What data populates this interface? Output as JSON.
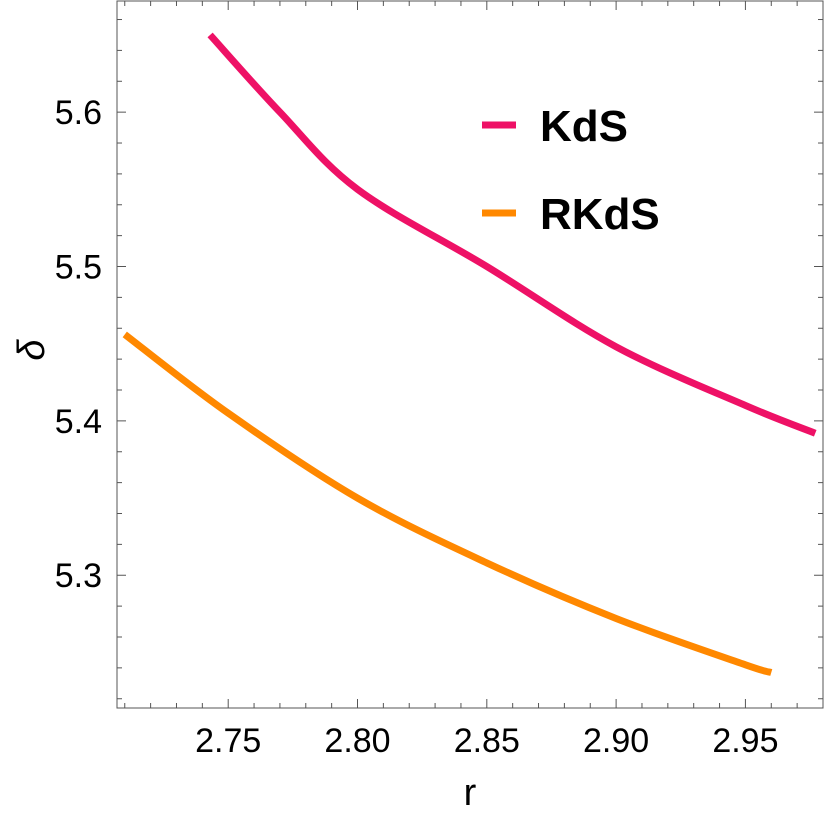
{
  "chart_data": {
    "type": "line",
    "xlabel": "r",
    "ylabel": "δ",
    "xlim": [
      2.707,
      2.98
    ],
    "ylim": [
      5.214,
      5.672
    ],
    "x_ticks": [
      2.75,
      2.8,
      2.85,
      2.9,
      2.95
    ],
    "x_tick_labels": [
      "2.75",
      "2.80",
      "2.85",
      "2.90",
      "2.95"
    ],
    "y_ticks": [
      5.3,
      5.4,
      5.5,
      5.6
    ],
    "y_tick_labels": [
      "5.3",
      "5.4",
      "5.5",
      "5.6"
    ],
    "legend_position": "top-right",
    "grid": false,
    "series": [
      {
        "name": "KdS",
        "color": "#ee1166",
        "x": [
          2.743,
          2.77,
          2.8,
          2.85,
          2.9,
          2.95,
          2.977
        ],
        "y": [
          5.65,
          5.6,
          5.55,
          5.5,
          5.448,
          5.41,
          5.392
        ]
      },
      {
        "name": "RKdS",
        "color": "#ff8800",
        "x": [
          2.71,
          2.75,
          2.8,
          2.85,
          2.9,
          2.95,
          2.96
        ],
        "y": [
          5.456,
          5.405,
          5.35,
          5.308,
          5.272,
          5.242,
          5.237
        ]
      }
    ]
  }
}
